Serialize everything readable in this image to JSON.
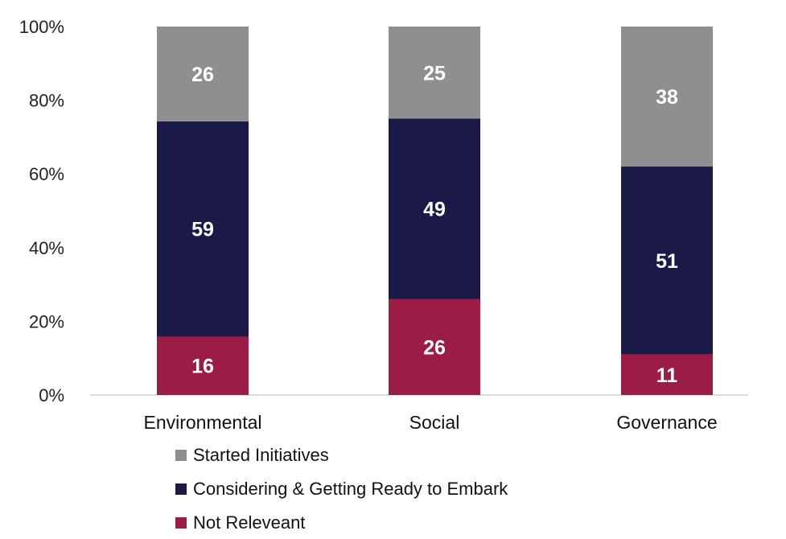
{
  "chart_data": {
    "type": "bar",
    "stacked": true,
    "normalized": true,
    "categories": [
      "Environmental",
      "Social",
      "Governance"
    ],
    "series": [
      {
        "name": "Not Releveant",
        "color": "#9b1c45",
        "values": [
          16,
          26,
          11
        ]
      },
      {
        "name": "Considering & Getting Ready to Embark",
        "color": "#1b1a47",
        "values": [
          59,
          49,
          51
        ]
      },
      {
        "name": "Started Initiatives",
        "color": "#8f8f8f",
        "values": [
          26,
          25,
          38
        ]
      }
    ],
    "y_ticks": [
      "0%",
      "20%",
      "40%",
      "60%",
      "80%",
      "100%"
    ],
    "ylim": [
      0,
      100
    ],
    "legend": {
      "position": "bottom",
      "order": [
        "Started Initiatives",
        "Considering & Getting Ready to Embark",
        "Not Releveant"
      ]
    },
    "grid": false
  }
}
